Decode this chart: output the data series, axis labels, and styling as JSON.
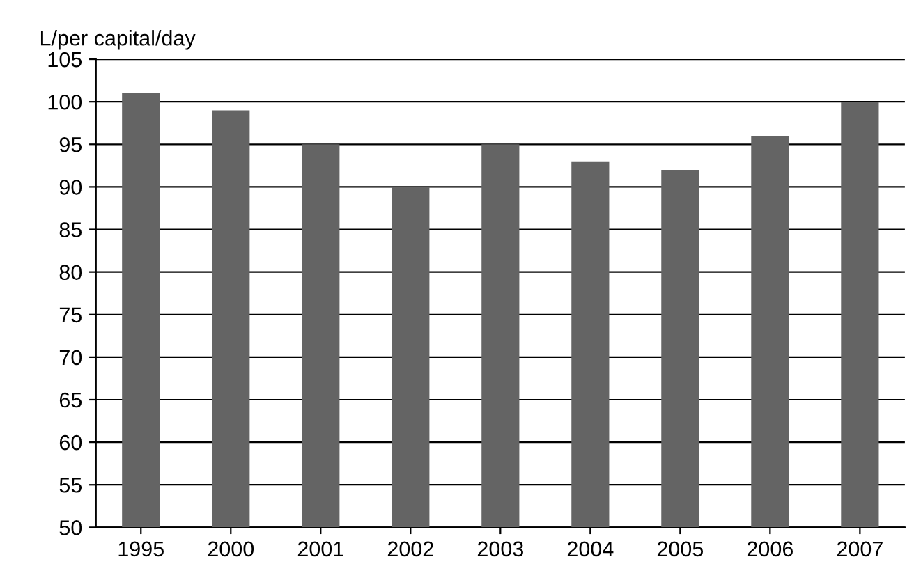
{
  "chart_data": {
    "type": "bar",
    "ylabel": "L/per capital/day",
    "categories": [
      "1995",
      "2000",
      "2001",
      "2002",
      "2003",
      "2004",
      "2005",
      "2006",
      "2007"
    ],
    "values": [
      101,
      99,
      95,
      90,
      95,
      93,
      92,
      96,
      100
    ],
    "color": "#646464",
    "ylim": [
      50,
      105
    ],
    "yticks": [
      50,
      55,
      60,
      65,
      70,
      75,
      80,
      85,
      90,
      95,
      100,
      105
    ],
    "grid": "y",
    "legend": false
  }
}
